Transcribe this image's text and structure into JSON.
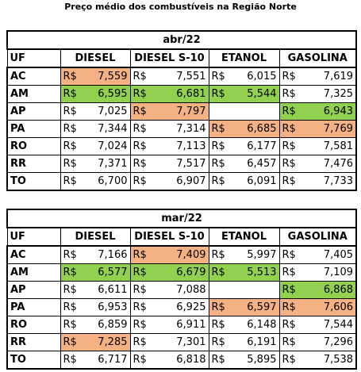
{
  "title": "Preço médio dos combustíveis na Região Norte",
  "currency": "R$",
  "tables": [
    {
      "period": "abr/22",
      "columns": [
        "UF",
        "DIESEL",
        "DIESEL S-10",
        "ETANOL",
        "GASOLINA"
      ],
      "rows": [
        {
          "uf": "AC",
          "cells": [
            {
              "value": "7,559",
              "fill": "#f4b183"
            },
            "7,551",
            "6,015",
            "7,619"
          ]
        },
        {
          "uf": "AM",
          "cells": [
            {
              "value": "6,595",
              "fill": "#92d050"
            },
            {
              "value": "6,681",
              "fill": "#92d050"
            },
            {
              "value": "5,544",
              "fill": "#92d050"
            },
            "7,325"
          ]
        },
        {
          "uf": "AP",
          "cells": [
            "7,025",
            {
              "value": "7,797",
              "fill": "#f4b183"
            },
            null,
            {
              "value": "6,943",
              "fill": "#92d050"
            }
          ]
        },
        {
          "uf": "PA",
          "cells": [
            "7,344",
            "7,314",
            {
              "value": "6,685",
              "fill": "#f4b183"
            },
            {
              "value": "7,769",
              "fill": "#f4b183"
            }
          ]
        },
        {
          "uf": "RO",
          "cells": [
            "7,024",
            "7,113",
            "6,177",
            "7,581"
          ]
        },
        {
          "uf": "RR",
          "cells": [
            "7,371",
            "7,517",
            "6,457",
            "7,476"
          ]
        },
        {
          "uf": "TO",
          "cells": [
            "6,700",
            "6,907",
            "6,091",
            "7,733"
          ]
        }
      ]
    },
    {
      "period": "mar/22",
      "columns": [
        "UF",
        "DIESEL",
        "DIESEL S-10",
        "ETANOL",
        "GASOLINA"
      ],
      "rows": [
        {
          "uf": "AC",
          "cells": [
            "7,166",
            {
              "value": "7,409",
              "fill": "#f4b183"
            },
            "5,997",
            "7,405"
          ]
        },
        {
          "uf": "AM",
          "cells": [
            {
              "value": "6,577",
              "fill": "#92d050"
            },
            {
              "value": "6,679",
              "fill": "#92d050"
            },
            {
              "value": "5,513",
              "fill": "#92d050"
            },
            "7,109"
          ]
        },
        {
          "uf": "AP",
          "cells": [
            "6,611",
            "7,088",
            null,
            {
              "value": "6,868",
              "fill": "#92d050"
            }
          ]
        },
        {
          "uf": "PA",
          "cells": [
            "6,953",
            "6,925",
            {
              "value": "6,597",
              "fill": "#f4b183"
            },
            {
              "value": "7,606",
              "fill": "#f4b183"
            }
          ]
        },
        {
          "uf": "RO",
          "cells": [
            "6,859",
            "6,911",
            "6,148",
            "7,544"
          ]
        },
        {
          "uf": "RR",
          "cells": [
            {
              "value": "7,285",
              "fill": "#f4b183"
            },
            "7,301",
            "6,191",
            "7,296"
          ]
        },
        {
          "uf": "TO",
          "cells": [
            "6,717",
            "6,818",
            "5,895",
            "7,538"
          ]
        }
      ]
    }
  ]
}
